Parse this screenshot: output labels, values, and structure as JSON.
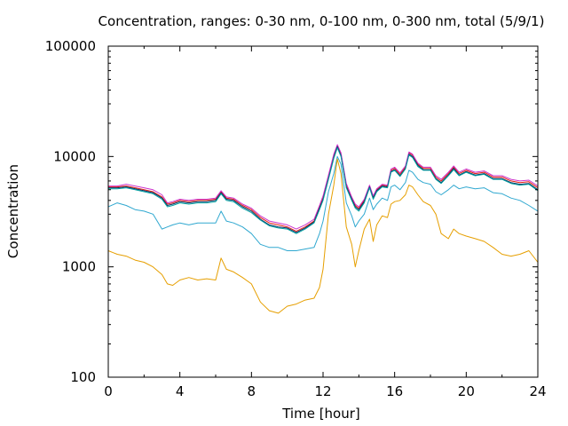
{
  "chart_data": {
    "type": "line",
    "title": "Concentration, ranges: 0-30 nm, 0-100 nm, 0-300 nm, total (5/9/1)",
    "xlabel": "Time [hour]",
    "ylabel": "Concentration",
    "xlim": [
      0,
      24
    ],
    "ylim": [
      100,
      100000
    ],
    "yscale": "log",
    "grid": false,
    "legend": "none",
    "x_ticks": [
      "0",
      "4",
      "8",
      "12",
      "16",
      "20",
      "24"
    ],
    "x_tick_values": [
      0,
      4,
      8,
      12,
      16,
      20,
      24
    ],
    "y_ticks": [
      "100",
      "1000",
      "10000",
      "100000"
    ],
    "y_tick_values": [
      100,
      1000,
      10000,
      100000
    ],
    "x": [
      0,
      0.5,
      1,
      1.5,
      2,
      2.5,
      3,
      3.3,
      3.6,
      4,
      4.5,
      5,
      5.5,
      6,
      6.3,
      6.6,
      7,
      7.5,
      8,
      8.5,
      9,
      9.5,
      10,
      10.5,
      11,
      11.5,
      11.8,
      12,
      12.3,
      12.6,
      12.8,
      13,
      13.3,
      13.6,
      13.8,
      14,
      14.3,
      14.6,
      14.8,
      15,
      15.3,
      15.6,
      15.8,
      16,
      16.3,
      16.6,
      16.8,
      17,
      17.3,
      17.6,
      18,
      18.3,
      18.6,
      19,
      19.3,
      19.6,
      20,
      20.5,
      21,
      21.5,
      22,
      22.5,
      23,
      23.5,
      24
    ],
    "series": [
      {
        "color": "#e51e10",
        "values": [
          5300,
          5300,
          5400,
          5200,
          5000,
          4800,
          4300,
          3700,
          3800,
          4000,
          3900,
          4000,
          4000,
          4100,
          4800,
          4200,
          4100,
          3600,
          3300,
          2800,
          2500,
          2400,
          2300,
          2100,
          2300,
          2600,
          3500,
          4200,
          6500,
          10000,
          12600,
          10500,
          5500,
          4200,
          3600,
          3400,
          4000,
          5400,
          4300,
          5000,
          5500,
          5400,
          7500,
          7800,
          6900,
          8000,
          10800,
          10300,
          8500,
          7800,
          7800,
          6500,
          6000,
          7000,
          8000,
          7000,
          7500,
          7000,
          7200,
          6500,
          6500,
          6000,
          5800,
          5900,
          5200
        ]
      },
      {
        "color": "#cc33cc",
        "values": [
          5400,
          5400,
          5600,
          5400,
          5200,
          5000,
          4500,
          3800,
          3900,
          4100,
          4000,
          4100,
          4100,
          4200,
          4900,
          4300,
          4200,
          3700,
          3400,
          2900,
          2600,
          2500,
          2400,
          2200,
          2400,
          2700,
          3600,
          4400,
          6800,
          10500,
          12800,
          10800,
          5700,
          4300,
          3700,
          3500,
          4100,
          5500,
          4400,
          5100,
          5600,
          5500,
          7700,
          8000,
          7100,
          8200,
          11000,
          10500,
          8700,
          8000,
          8000,
          6700,
          6200,
          7200,
          8200,
          7200,
          7700,
          7200,
          7400,
          6700,
          6700,
          6200,
          6000,
          6100,
          5400
        ]
      },
      {
        "color": "#003366",
        "values": [
          5200,
          5200,
          5300,
          5100,
          4900,
          4700,
          4200,
          3600,
          3700,
          3900,
          3800,
          3900,
          3900,
          4000,
          4700,
          4100,
          4000,
          3500,
          3200,
          2700,
          2400,
          2300,
          2250,
          2050,
          2250,
          2550,
          3400,
          4100,
          6300,
          9800,
          12300,
          10200,
          5300,
          4100,
          3500,
          3300,
          3900,
          5300,
          4200,
          4900,
          5400,
          5300,
          7300,
          7600,
          6700,
          7800,
          10500,
          10000,
          8300,
          7600,
          7600,
          6300,
          5800,
          6800,
          7800,
          6800,
          7300,
          6800,
          7000,
          6300,
          6300,
          5800,
          5600,
          5700,
          5000
        ]
      },
      {
        "color": "#00a0a0",
        "values": [
          5100,
          5100,
          5200,
          5000,
          4800,
          4600,
          4100,
          3500,
          3600,
          3800,
          3700,
          3800,
          3800,
          3900,
          4600,
          4000,
          3900,
          3400,
          3100,
          2650,
          2350,
          2250,
          2200,
          2000,
          2200,
          2500,
          3300,
          4000,
          6200,
          9600,
          12000,
          10000,
          5200,
          4000,
          3400,
          3200,
          3800,
          5200,
          4100,
          4800,
          5300,
          5200,
          7200,
          7500,
          6600,
          7700,
          10300,
          9800,
          8100,
          7500,
          7500,
          6200,
          5700,
          6700,
          7600,
          6700,
          7200,
          6700,
          6900,
          6200,
          6200,
          5700,
          5500,
          5600,
          4900
        ]
      },
      {
        "color": "#30a8d0",
        "values": [
          3500,
          3800,
          3600,
          3300,
          3200,
          3000,
          2200,
          2300,
          2400,
          2500,
          2400,
          2500,
          2500,
          2500,
          3200,
          2600,
          2500,
          2300,
          2000,
          1600,
          1500,
          1500,
          1400,
          1400,
          1450,
          1500,
          2000,
          2600,
          4800,
          7000,
          10000,
          8500,
          3800,
          2900,
          2300,
          2600,
          3000,
          4200,
          3300,
          3700,
          4200,
          4000,
          5300,
          5500,
          5000,
          5800,
          7500,
          7200,
          6200,
          5800,
          5600,
          4800,
          4500,
          5000,
          5500,
          5100,
          5300,
          5100,
          5200,
          4700,
          4600,
          4200,
          4000,
          3600,
          3200
        ]
      },
      {
        "color": "#e69f00",
        "values": [
          1400,
          1300,
          1250,
          1150,
          1100,
          1000,
          850,
          700,
          680,
          760,
          800,
          760,
          780,
          760,
          1200,
          950,
          900,
          800,
          700,
          480,
          400,
          380,
          440,
          460,
          500,
          520,
          650,
          950,
          3000,
          5500,
          9500,
          7000,
          2300,
          1600,
          1000,
          1400,
          2200,
          2700,
          1700,
          2400,
          2900,
          2800,
          3700,
          3900,
          4000,
          4500,
          5500,
          5300,
          4500,
          3900,
          3600,
          3000,
          2000,
          1800,
          2200,
          2000,
          1900,
          1800,
          1700,
          1500,
          1300,
          1250,
          1300,
          1400,
          1100
        ]
      }
    ]
  }
}
